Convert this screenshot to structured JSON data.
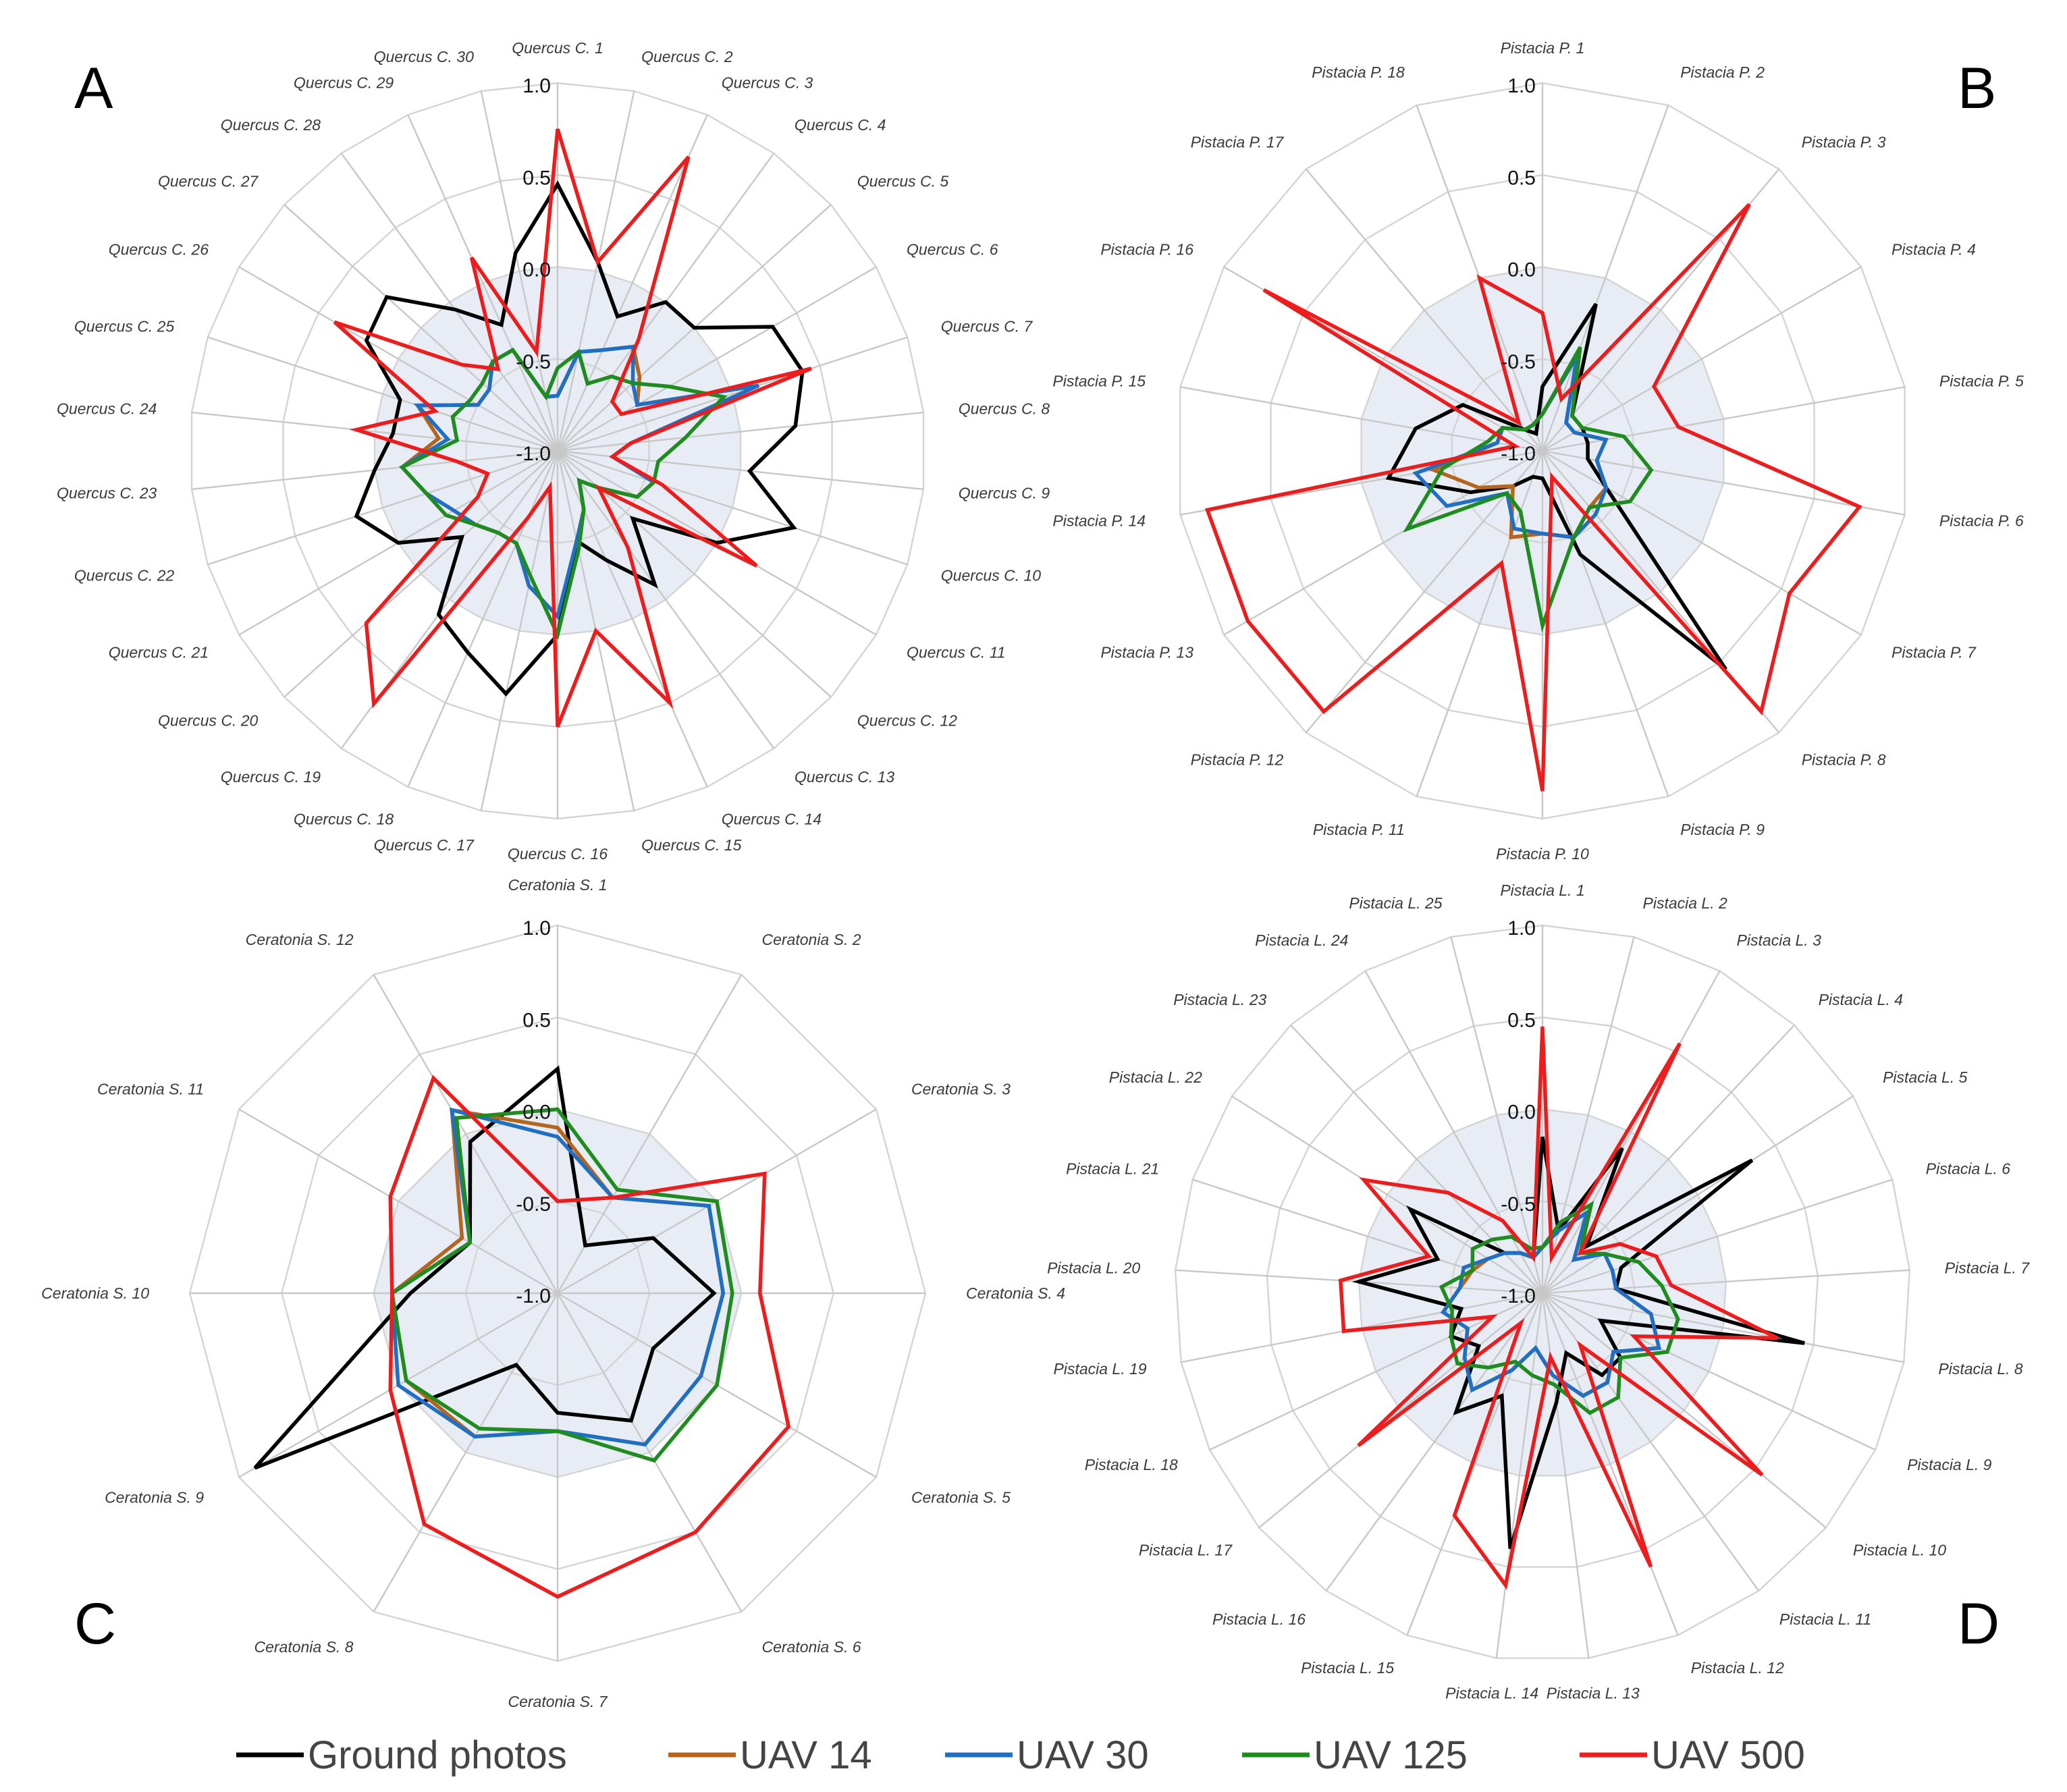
{
  "legend": [
    {
      "name": "Ground photos",
      "color": "#000000"
    },
    {
      "name": "UAV 14",
      "color": "#b5651d"
    },
    {
      "name": "UAV 30",
      "color": "#1f6fc5"
    },
    {
      "name": "UAV 125",
      "color": "#1e8c1e"
    },
    {
      "name": "UAV 500",
      "color": "#ee1c1c"
    }
  ],
  "chart_data": [
    {
      "type": "radar",
      "panel": "A",
      "rmin": -1.0,
      "rmax": 1.0,
      "ticks": [
        "1.0",
        "0.5",
        "0.0",
        "-0.5",
        "-1.0"
      ],
      "tick_values": [
        1.0,
        0.5,
        0.0,
        -0.5,
        -1.0
      ],
      "shaded_ring": 0.0,
      "categories": [
        "Quercus C. 1",
        "Quercus C. 2",
        "Quercus C. 3",
        "Quercus C. 4",
        "Quercus C. 5",
        "Quercus C. 6",
        "Quercus C. 7",
        "Quercus C. 8",
        "Quercus C. 9",
        "Quercus C. 10",
        "Quercus C. 11",
        "Quercus C. 12",
        "Quercus C. 13",
        "Quercus C. 14",
        "Quercus C. 15",
        "Quercus C. 16",
        "Quercus C. 17",
        "Quercus C. 18",
        "Quercus C. 19",
        "Quercus C. 20",
        "Quercus C. 21",
        "Quercus C. 22",
        "Quercus C. 23",
        "Quercus C. 24",
        "Quercus C. 25",
        "Quercus C. 26",
        "Quercus C. 27",
        "Quercus C. 28",
        "Quercus C. 29",
        "Quercus C. 30"
      ],
      "series": [
        {
          "name": "Ground photos",
          "values": [
            0.45,
            0.05,
            -0.2,
            0.0,
            0.0,
            0.35,
            0.4,
            0.3,
            0.05,
            0.35,
            0.0,
            -0.45,
            -0.1,
            -0.35,
            -0.5,
            0.0,
            0.35,
            0.2,
            0.1,
            -0.3,
            0.0,
            0.15,
            0.0,
            -0.1,
            -0.1,
            0.2,
            0.25,
            -0.05,
            -0.25,
            0.1
          ]
        },
        {
          "name": "UAV 14",
          "values": [
            -0.7,
            -0.45,
            -0.4,
            -0.3,
            -0.4,
            -0.5,
            0.15,
            -0.6,
            -0.7,
            -0.45,
            -0.5,
            -0.7,
            -0.8,
            -0.65,
            -0.5,
            -0.1,
            -0.25,
            -0.45,
            -0.45,
            -0.4,
            -0.35,
            -0.25,
            -0.15,
            -0.35,
            -0.2,
            -0.5,
            -0.5,
            -0.4,
            -0.4,
            -0.7
          ]
        },
        {
          "name": "UAV 30",
          "values": [
            -0.7,
            -0.45,
            -0.4,
            -0.3,
            -0.45,
            -0.5,
            0.15,
            -0.6,
            -0.7,
            -0.45,
            -0.5,
            -0.7,
            -0.8,
            -0.65,
            -0.5,
            -0.1,
            -0.25,
            -0.45,
            -0.45,
            -0.4,
            -0.35,
            -0.25,
            -0.15,
            -0.4,
            -0.2,
            -0.5,
            -0.5,
            -0.4,
            -0.4,
            -0.7
          ]
        },
        {
          "name": "UAV 125",
          "values": [
            -0.55,
            -0.45,
            -0.6,
            -0.5,
            -0.45,
            -0.3,
            -0.05,
            -0.3,
            -0.45,
            -0.45,
            -0.5,
            -0.7,
            -0.8,
            -0.65,
            -0.45,
            0.0,
            -0.3,
            -0.45,
            -0.45,
            -0.4,
            -0.3,
            -0.25,
            -0.15,
            -0.45,
            -0.4,
            -0.45,
            -0.45,
            -0.4,
            -0.4,
            -0.7
          ]
        },
        {
          "name": "UAV 500",
          "values": [
            0.75,
            0.05,
            0.75,
            -0.25,
            -0.6,
            -0.6,
            0.45,
            -0.6,
            -0.7,
            -0.4,
            0.25,
            -0.7,
            -0.35,
            0.5,
            0.0,
            0.5,
            -0.8,
            -0.6,
            0.7,
            0.4,
            -0.5,
            -0.6,
            -0.45,
            0.1,
            -0.3,
            0.4,
            -0.3,
            -0.45,
            0.15,
            -0.45
          ]
        }
      ]
    },
    {
      "type": "radar",
      "panel": "B",
      "rmin": -1.0,
      "rmax": 1.0,
      "ticks": [
        "1.0",
        "0.5",
        "0.0",
        "-0.5",
        "-1.0"
      ],
      "tick_values": [
        1.0,
        0.5,
        0.0,
        -0.5,
        -1.0
      ],
      "shaded_ring": 0.0,
      "categories": [
        "Pistacia P. 1",
        "Pistacia P. 2",
        "Pistacia P. 3",
        "Pistacia P. 4",
        "Pistacia P. 5",
        "Pistacia P. 6",
        "Pistacia P. 7",
        "Pistacia P. 8",
        "Pistacia P. 9",
        "Pistacia P. 10",
        "Pistacia P. 11",
        "Pistacia P. 12",
        "Pistacia P. 13",
        "Pistacia P. 14",
        "Pistacia P. 15",
        "Pistacia P. 16",
        "Pistacia P. 17",
        "Pistacia P. 18"
      ],
      "series": [
        {
          "name": "Ground photos",
          "values": [
            -0.65,
            -0.15,
            -0.75,
            -0.75,
            -0.75,
            -0.75,
            -0.6,
            0.55,
            -0.4,
            -0.85,
            -0.85,
            -0.75,
            -0.55,
            -0.15,
            -0.3,
            -0.5,
            -0.85,
            -0.9
          ]
        },
        {
          "name": "UAV 14",
          "values": [
            -0.8,
            -0.45,
            -0.8,
            -0.8,
            -0.65,
            -0.7,
            -0.6,
            -0.6,
            -0.5,
            -0.55,
            -0.5,
            -0.75,
            -0.6,
            -0.4,
            -0.75,
            -0.75,
            -0.85,
            -0.85
          ]
        },
        {
          "name": "UAV 30",
          "values": [
            -0.8,
            -0.45,
            -0.8,
            -0.8,
            -0.65,
            -0.7,
            -0.6,
            -0.55,
            -0.5,
            -0.55,
            -0.55,
            -0.7,
            -0.4,
            -0.3,
            -0.75,
            -0.75,
            -0.85,
            -0.85
          ]
        },
        {
          "name": "UAV 125",
          "values": [
            -0.8,
            -0.4,
            -0.75,
            -0.75,
            -0.55,
            -0.4,
            -0.45,
            -0.6,
            -0.5,
            -0.05,
            -0.65,
            -0.7,
            -0.15,
            -0.45,
            -0.7,
            -0.75,
            -0.85,
            -0.85
          ]
        },
        {
          "name": "UAV 500",
          "values": [
            -0.25,
            -0.7,
            0.75,
            -0.3,
            -0.25,
            0.75,
            0.55,
            0.85,
            -0.85,
            0.85,
            -0.35,
            0.85,
            0.85,
            0.85,
            -0.85,
            0.75,
            -0.8,
            0.0
          ]
        }
      ]
    },
    {
      "type": "radar",
      "panel": "C",
      "rmin": -1.0,
      "rmax": 1.0,
      "ticks": [
        "1.0",
        "0.5",
        "0.0",
        "-0.5",
        "-1.0"
      ],
      "tick_values": [
        1.0,
        0.5,
        0.0,
        -0.5,
        -1.0
      ],
      "shaded_ring": 0.0,
      "categories": [
        "Ceratonia S. 1",
        "Ceratonia S. 2",
        "Ceratonia S. 3",
        "Ceratonia S. 4",
        "Ceratonia S. 5",
        "Ceratonia S. 6",
        "Ceratonia S. 7",
        "Ceratonia S. 8",
        "Ceratonia S. 9",
        "Ceratonia S. 10",
        "Ceratonia S. 11",
        "Ceratonia S. 12"
      ],
      "series": [
        {
          "name": "Ground photos",
          "values": [
            0.22,
            -0.7,
            -0.4,
            -0.15,
            -0.4,
            -0.2,
            -0.35,
            -0.55,
            0.9,
            -0.2,
            -0.45,
            -0.05
          ]
        },
        {
          "name": "UAV 14",
          "values": [
            -0.1,
            -0.4,
            -0.05,
            -0.1,
            -0.1,
            -0.05,
            -0.25,
            -0.1,
            -0.05,
            -0.1,
            -0.4,
            0.15
          ]
        },
        {
          "name": "UAV 30",
          "values": [
            -0.15,
            -0.4,
            -0.05,
            -0.1,
            -0.1,
            -0.05,
            -0.25,
            -0.1,
            0.0,
            -0.1,
            -0.45,
            0.15
          ]
        },
        {
          "name": "UAV 125",
          "values": [
            0.0,
            -0.35,
            0.0,
            -0.05,
            0.0,
            0.05,
            -0.25,
            -0.15,
            -0.05,
            -0.1,
            -0.45,
            0.1
          ]
        },
        {
          "name": "UAV 500",
          "values": [
            -0.5,
            -0.4,
            0.3,
            0.1,
            0.45,
            0.5,
            0.65,
            0.45,
            0.05,
            -0.1,
            0.05,
            0.35
          ]
        }
      ]
    },
    {
      "type": "radar",
      "panel": "D",
      "rmin": -1.0,
      "rmax": 1.0,
      "ticks": [
        "1.0",
        "0.5",
        "0.0",
        "-0.5",
        "-1.0"
      ],
      "tick_values": [
        1.0,
        0.5,
        0.0,
        -0.5,
        -1.0
      ],
      "shaded_ring": 0.0,
      "categories": [
        "Pistacia L. 1",
        "Pistacia L. 2",
        "Pistacia L. 3",
        "Pistacia L. 4",
        "Pistacia L. 5",
        "Pistacia L. 6",
        "Pistacia L. 7",
        "Pistacia L. 8",
        "Pistacia L. 9",
        "Pistacia L. 10",
        "Pistacia L. 11",
        "Pistacia L. 12",
        "Pistacia L. 13",
        "Pistacia L. 14",
        "Pistacia L. 15",
        "Pistacia L. 16",
        "Pistacia L. 17",
        "Pistacia L. 18",
        "Pistacia L. 19",
        "Pistacia L. 20",
        "Pistacia L. 21",
        "Pistacia L. 22",
        "Pistacia L. 23",
        "Pistacia L. 24",
        "Pistacia L. 25"
      ],
      "series": [
        {
          "name": "Ground photos",
          "values": [
            -0.15,
            -0.65,
            -0.1,
            -0.65,
            0.35,
            -0.55,
            -0.6,
            0.45,
            -0.65,
            -0.45,
            -0.45,
            -0.65,
            -0.4,
            0.4,
            -0.4,
            -0.2,
            -0.55,
            -0.45,
            -0.55,
            0.0,
            -0.4,
            -0.15,
            -0.7,
            -0.75,
            -0.8
          ]
        },
        {
          "name": "UAV 14",
          "values": [
            -0.75,
            -0.65,
            -0.5,
            -0.75,
            -0.6,
            -0.6,
            -0.6,
            -0.4,
            -0.3,
            -0.5,
            -0.4,
            -0.4,
            -0.55,
            -0.7,
            -0.55,
            -0.35,
            -0.45,
            -0.55,
            -0.45,
            -0.55,
            -0.6,
            -0.65,
            -0.7,
            -0.75,
            -0.8
          ]
        },
        {
          "name": "UAV 30",
          "values": [
            -0.75,
            -0.65,
            -0.5,
            -0.75,
            -0.6,
            -0.6,
            -0.6,
            -0.4,
            -0.3,
            -0.5,
            -0.4,
            -0.4,
            -0.55,
            -0.7,
            -0.55,
            -0.35,
            -0.45,
            -0.55,
            -0.45,
            -0.55,
            -0.55,
            -0.65,
            -0.7,
            -0.75,
            -0.8
          ]
        },
        {
          "name": "UAV 125",
          "values": [
            -0.75,
            -0.6,
            -0.45,
            -0.7,
            -0.6,
            -0.45,
            -0.35,
            -0.25,
            -0.25,
            -0.45,
            -0.3,
            -0.3,
            -0.5,
            -0.55,
            -0.6,
            -0.5,
            -0.4,
            -0.45,
            -0.5,
            -0.45,
            -0.6,
            -0.55,
            -0.6,
            -0.65,
            -0.75
          ]
        },
        {
          "name": "UAV 500",
          "values": [
            0.45,
            -0.8,
            0.55,
            -0.7,
            -0.5,
            -0.35,
            -0.3,
            0.3,
            -0.45,
            0.55,
            -0.65,
            0.6,
            -0.65,
            0.6,
            0.3,
            -0.8,
            0.3,
            -0.7,
            0.1,
            0.1,
            -0.35,
            0.15,
            -0.25,
            -0.55,
            -0.8
          ]
        }
      ]
    }
  ]
}
